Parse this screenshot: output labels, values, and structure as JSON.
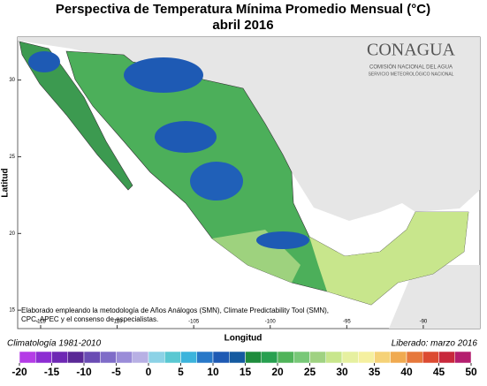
{
  "header": {
    "title": "Perspectiva de Temperatura Mínima Promedio Mensual (°C)",
    "subtitle": "abril 2016"
  },
  "logo": {
    "name": "CONAGUA",
    "line1": "COMISIÓN NACIONAL DEL AGUA",
    "line2": "SERVICIO METEOROLÓGICO NACIONAL"
  },
  "map": {
    "x_label": "Longitud",
    "y_label": "Latitud",
    "xlim": [
      -116.5,
      -86.3
    ],
    "ylim": [
      13.8,
      32.8
    ],
    "xticks": [
      -115,
      -110,
      -105,
      -100,
      -95,
      -90
    ],
    "yticks": [
      30,
      25,
      20,
      15
    ],
    "note": [
      "Elaborado empleando la metodología de Años Análogos (SMN), Climate Predictability Tool (SMN),",
      "CPC, APEC y el consenso de especialistas."
    ]
  },
  "footer": {
    "left": "Climatología 1981-2010",
    "right": "Liberado: marzo 2016"
  },
  "legend": {
    "ticks": [
      -20,
      -15,
      -10,
      -5,
      0,
      5,
      10,
      15,
      20,
      25,
      30,
      35,
      40,
      45,
      50
    ],
    "colors": [
      "#b43ce6",
      "#8c2dd2",
      "#6e28b4",
      "#5a2896",
      "#6a4cb4",
      "#7f6cc8",
      "#9a8cd8",
      "#b8b0e4",
      "#8cd2e6",
      "#5ac8d2",
      "#3cb4dc",
      "#2878c8",
      "#1e5ab4",
      "#145aa0",
      "#1e8c3c",
      "#28a050",
      "#50b45a",
      "#78c878",
      "#a0d282",
      "#c8e68c",
      "#e6f0a0",
      "#f5f0a0",
      "#f5d278",
      "#f0aa50",
      "#e6783c",
      "#dc4b32",
      "#c8283c",
      "#b41e6e"
    ]
  }
}
